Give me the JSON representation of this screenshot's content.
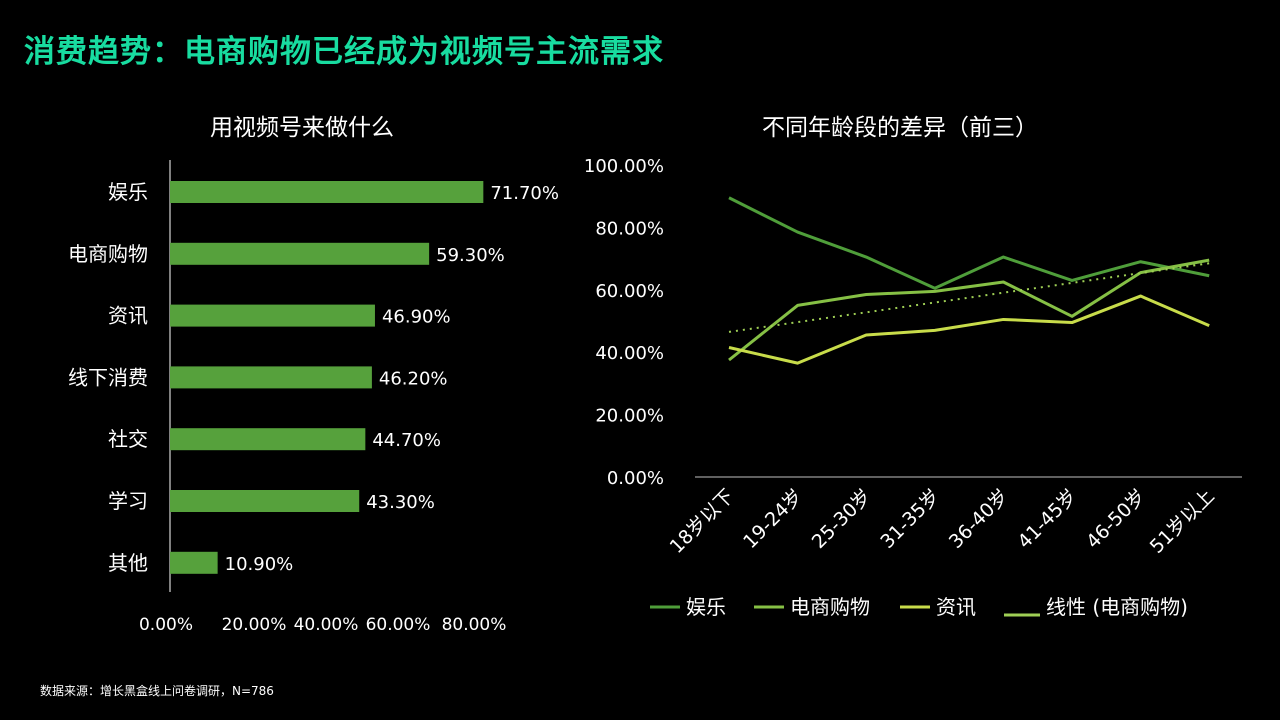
{
  "slide": {
    "title": "消费趋势：电商购物已经成为视频号主流需求",
    "source": "数据来源：增长黑盒线上问卷调研，N=786"
  },
  "colors": {
    "title": "#18dca0",
    "bar": "#56a13c",
    "yule": "#4f9e3a",
    "dianshang": "#86c045",
    "zixun": "#c8dc4a",
    "trend": "#9fcf55"
  },
  "chart_data": [
    {
      "type": "bar",
      "orientation": "horizontal",
      "title": "用视频号来做什么",
      "categories": [
        "娱乐",
        "电商购物",
        "资讯",
        "线下消费",
        "社交",
        "学习",
        "其他"
      ],
      "values": [
        71.7,
        59.3,
        46.9,
        46.2,
        44.7,
        43.3,
        10.9
      ],
      "value_labels": [
        "71.70%",
        "59.30%",
        "46.90%",
        "46.20%",
        "44.70%",
        "43.30%",
        "10.90%"
      ],
      "x_ticks": [
        "0.00%",
        "20.00%",
        "40.00%",
        "60.00%",
        "80.00%"
      ],
      "xlim": [
        0,
        80
      ]
    },
    {
      "type": "line",
      "title": "不同年龄段的差异（前三）",
      "categories": [
        "18岁以下",
        "19-24岁",
        "25-30岁",
        "31-35岁",
        "36-40岁",
        "41-45岁",
        "46-50岁",
        "51岁以上"
      ],
      "series": [
        {
          "name": "娱乐",
          "values": [
            89.5,
            78.5,
            70.5,
            60.5,
            70.5,
            63.0,
            69.0,
            64.5
          ]
        },
        {
          "name": "电商购物",
          "values": [
            37.5,
            55.0,
            58.5,
            59.5,
            62.5,
            51.5,
            65.5,
            69.5
          ]
        },
        {
          "name": "资讯",
          "values": [
            41.5,
            36.5,
            45.5,
            47.0,
            50.5,
            49.5,
            58.0,
            48.5
          ]
        }
      ],
      "trendline": {
        "name": "线性 (电商购物)",
        "of_series": "电商购物",
        "values": [
          46.5,
          68.5
        ]
      },
      "y_ticks": [
        "100.00%",
        "80.00%",
        "60.00%",
        "40.00%",
        "20.00%",
        "0.00%"
      ],
      "ylim": [
        0,
        100
      ],
      "legend_position": "bottom",
      "grid": false
    }
  ]
}
